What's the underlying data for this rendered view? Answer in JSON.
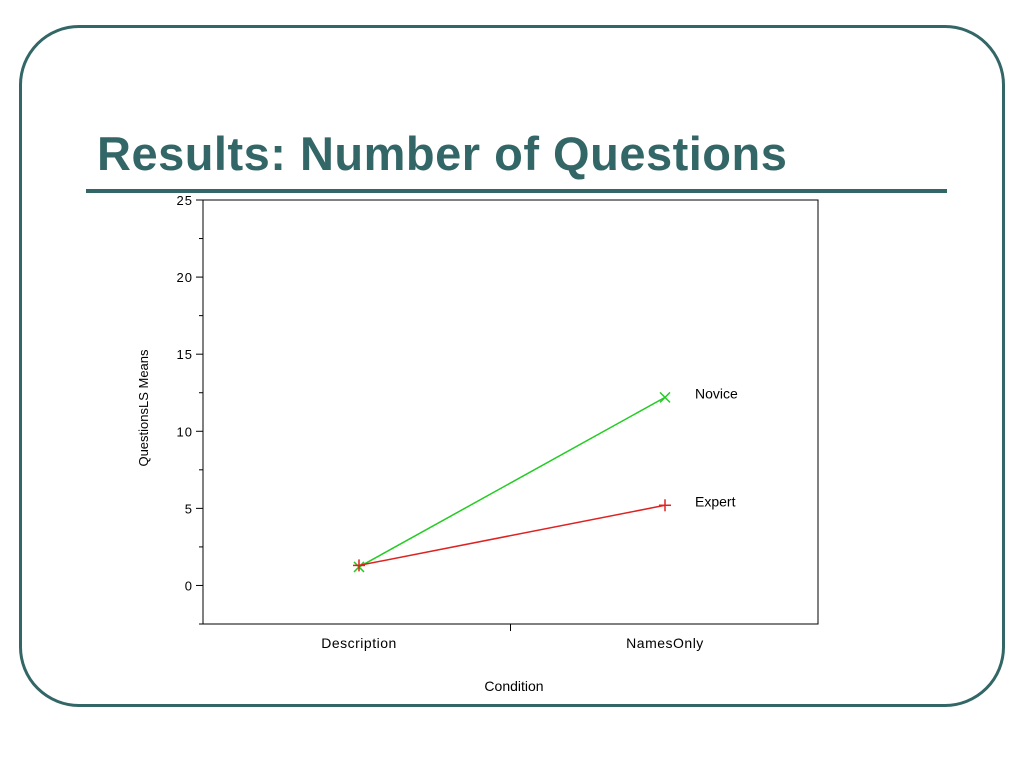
{
  "slide": {
    "title": "Results: Number of Questions"
  },
  "colors": {
    "frame": "#336666",
    "title": "#336666",
    "novice": "#22cc22",
    "expert": "#dd2222"
  },
  "chart_data": {
    "type": "line",
    "title": "",
    "xlabel": "Condition",
    "ylabel": "QuestionsLS Means",
    "categories": [
      "Description",
      "NamesOnly"
    ],
    "ylim": [
      -2.5,
      25
    ],
    "yticks": [
      0,
      5,
      10,
      15,
      20,
      25
    ],
    "grid": false,
    "series": [
      {
        "name": "Novice",
        "values": [
          1.2,
          12.2
        ],
        "color": "#22cc22",
        "marker": "x"
      },
      {
        "name": "Expert",
        "values": [
          1.3,
          5.2
        ],
        "color": "#dd2222",
        "marker": "+"
      }
    ]
  }
}
